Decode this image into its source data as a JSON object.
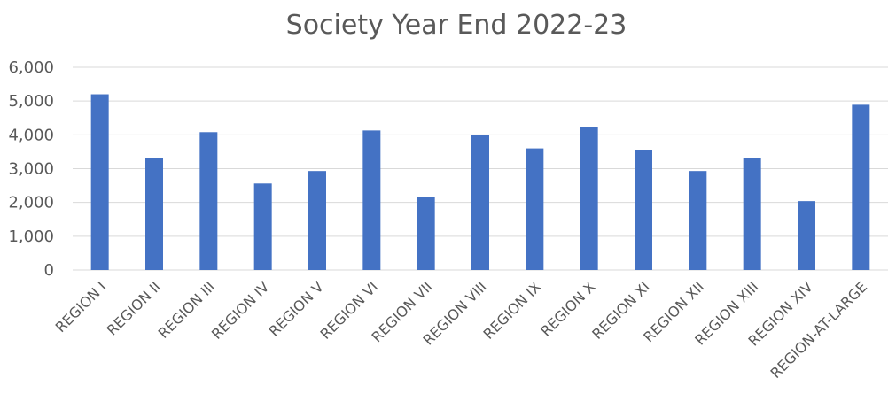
{
  "chart_data": {
    "type": "bar",
    "title": "Society Year End 2022-23",
    "xlabel": "",
    "ylabel": "",
    "categories": [
      "REGION I",
      "REGION II",
      "REGION III",
      "REGION IV",
      "REGION V",
      "REGION VI",
      "REGION VII",
      "REGION VIII",
      "REGION IX",
      "REGION X",
      "REGION XI",
      "REGION XII",
      "REGION XIII",
      "REGION XIV",
      "REGION-AT-LARGE"
    ],
    "values": [
      5200,
      3320,
      4080,
      2560,
      2930,
      4130,
      2150,
      3990,
      3600,
      4240,
      3560,
      2930,
      3310,
      2040,
      4890
    ],
    "ylim": [
      0,
      6000
    ],
    "yticks": [
      0,
      1000,
      2000,
      3000,
      4000,
      5000,
      6000
    ],
    "ytick_labels": [
      "0",
      "1,000",
      "2,000",
      "3,000",
      "4,000",
      "5,000",
      "6,000"
    ],
    "grid": true,
    "legend": "none",
    "bar_color": "#4472c4"
  }
}
